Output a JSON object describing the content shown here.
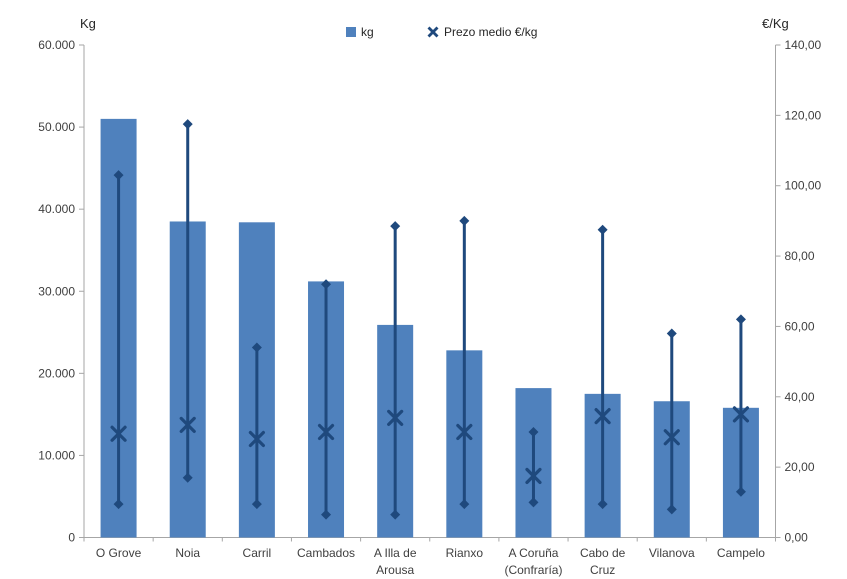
{
  "chart_data": {
    "type": "bar",
    "subtype": "bar-with-high-low-mean-markers",
    "title": "",
    "categories": [
      "O Grove",
      "Noia",
      "Carril",
      "Cambados",
      "A Illa de Arousa",
      "Rianxo",
      "A Coruña (Confraría)",
      "Cabo de Cruz",
      "Vilanova",
      "Campelo"
    ],
    "series": [
      {
        "name": "kg",
        "type": "bar",
        "axis": "left",
        "color": "#4f81bd",
        "values": [
          51000,
          38500,
          38400,
          31200,
          25900,
          22800,
          18200,
          17500,
          16600,
          15800
        ]
      },
      {
        "name": "Prezo medio €/kg",
        "type": "high-low-mean",
        "axis": "right",
        "color": "#1f497d",
        "mean": [
          29.5,
          32,
          28,
          30,
          34,
          30,
          17.5,
          34.5,
          28.5,
          35
        ],
        "high": [
          103,
          117.5,
          54,
          72,
          88.5,
          90,
          30,
          87.5,
          58,
          62
        ],
        "low": [
          9.5,
          17,
          9.5,
          6.5,
          6.5,
          9.5,
          10,
          9.5,
          8,
          13
        ]
      }
    ],
    "left_axis": {
      "title": "Kg",
      "min": 0,
      "max": 60000,
      "step": 10000,
      "tick_labels": [
        "0",
        "10.000",
        "20.000",
        "30.000",
        "40.000",
        "50.000",
        "60.000"
      ]
    },
    "right_axis": {
      "title": "€/Kg",
      "min": 0,
      "max": 140,
      "step": 20,
      "tick_labels": [
        "0,00",
        "20,00",
        "40,00",
        "60,00",
        "80,00",
        "100,00",
        "120,00",
        "140,00"
      ]
    },
    "legend": {
      "position": "top-center",
      "items": [
        {
          "label": "kg",
          "marker": "square",
          "color": "#4f81bd"
        },
        {
          "label": "Prezo medio €/kg",
          "marker": "x",
          "color": "#1f497d"
        }
      ]
    },
    "grid": false,
    "colors": {
      "axis_line": "#a6a6a6",
      "text": "#3f3f3f",
      "background": "#ffffff"
    }
  }
}
